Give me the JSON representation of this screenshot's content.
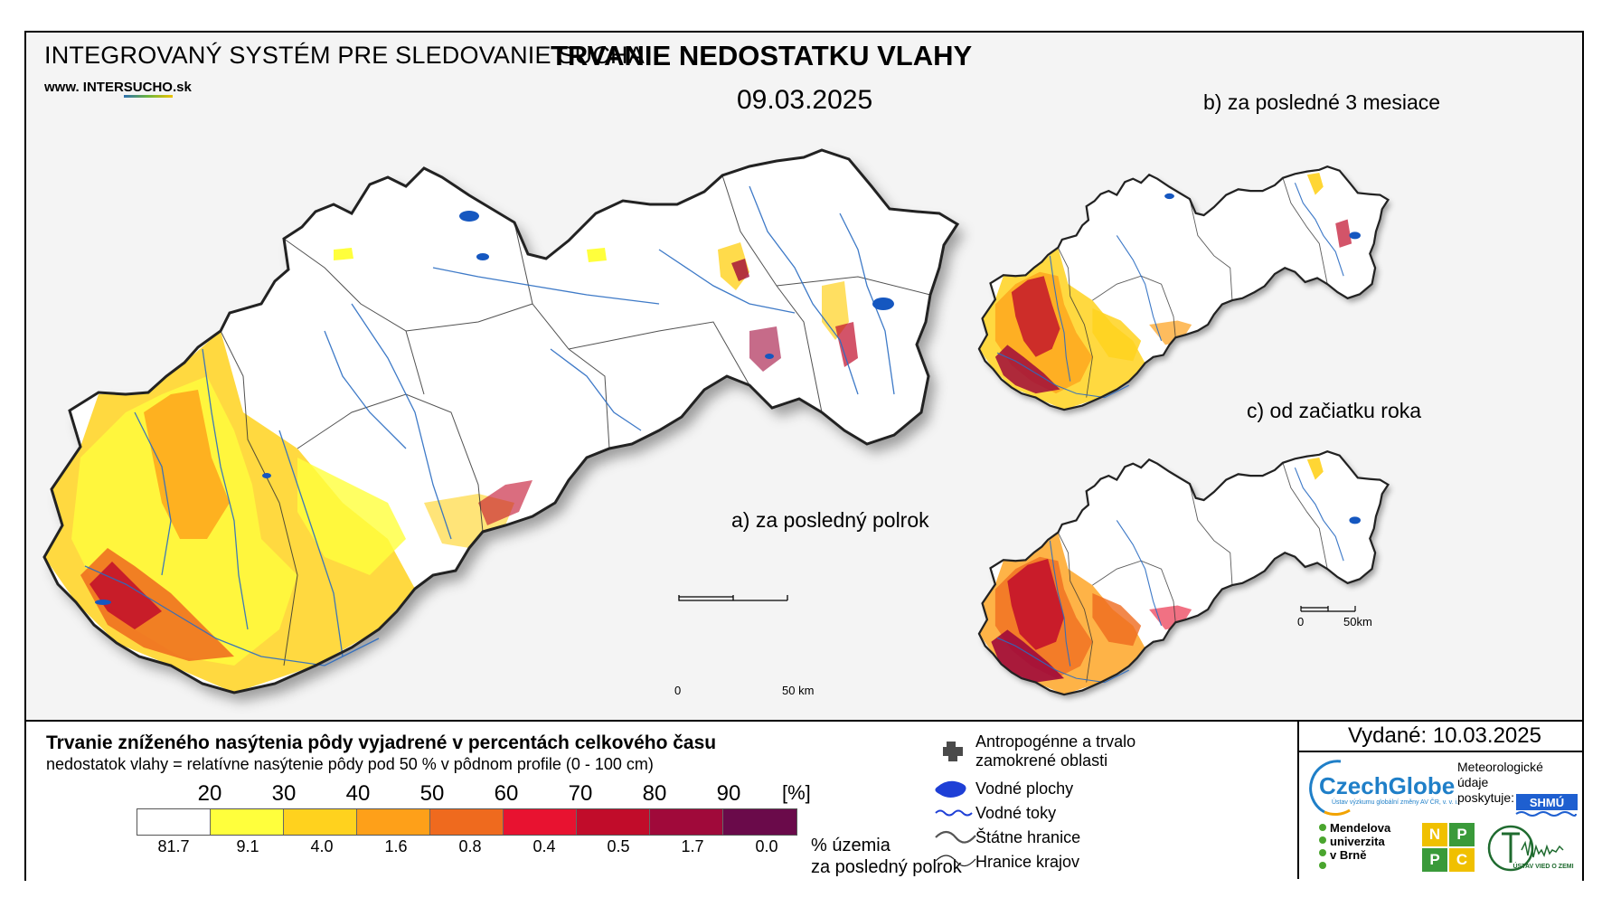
{
  "header": {
    "system_title": "INTEGROVANÝ SYSTÉM PRE SLEDOVANIE SUCHA",
    "website_prefix": "www. INTER",
    "website_highlight": "SUCHO",
    "website_suffix": ".sk",
    "title": "TRVANIE NEDOSTATKU VLAHY",
    "date": "09.03.2025"
  },
  "maps": {
    "main_label": "a) za posledný polrok",
    "inset_b_label": "b) za posledné 3 mesiace",
    "inset_c_label": "c) od začiatku roka",
    "main_scale": {
      "start": "0",
      "end": "50 km"
    },
    "inset_scale": {
      "start": "0",
      "end": "50km"
    }
  },
  "legend": {
    "title": "Trvanie zníženého nasýtenia pôdy vyjadrené v percentách celkového času",
    "subtitle": "nedostatok vlahy = relatívne nasýtenie pôdy pod 50 % v pôdnom profile (0 - 100 cm)",
    "unit": "[%]",
    "ticks": [
      "20",
      "30",
      "40",
      "50",
      "60",
      "70",
      "80",
      "90"
    ],
    "colors": [
      "#ffffff",
      "#ffff3c",
      "#ffd21e",
      "#fea019",
      "#ef6a1e",
      "#e81230",
      "#c10c2a",
      "#a0093a",
      "#6a0a4a"
    ],
    "percentages": [
      "81.7",
      "9.1",
      "4.0",
      "1.6",
      "0.8",
      "0.4",
      "0.5",
      "1.7",
      "0.0"
    ],
    "percentages_label_1": "% územia",
    "percentages_label_2": "za posledný polrok"
  },
  "symbols": {
    "anthropogenic_1": "Antropogénne a trvalo",
    "anthropogenic_2": "zamokrené oblasti",
    "water_bodies": "Vodné plochy",
    "water_streams": "Vodné toky",
    "state_borders": "Štátne hranice",
    "region_borders": "Hranice krajov"
  },
  "credits": {
    "issued": "Vydané: 10.03.2025",
    "czechglobe": "CzechGlobe",
    "czechglobe_sub": "Ústav výzkumu globální změny AV ČR, v. v. i.",
    "meteo_1": "Meteorologické",
    "meteo_2": "údaje",
    "meteo_3": "poskytuje:",
    "shmu": "SHMÚ",
    "mendel_1": "Mendelova",
    "mendel_2": "univerzita",
    "mendel_3": "v Brně",
    "nppc": [
      "N",
      "P",
      "P",
      "C"
    ],
    "uvz": "ÚSTAV VIED O ZEMI"
  }
}
